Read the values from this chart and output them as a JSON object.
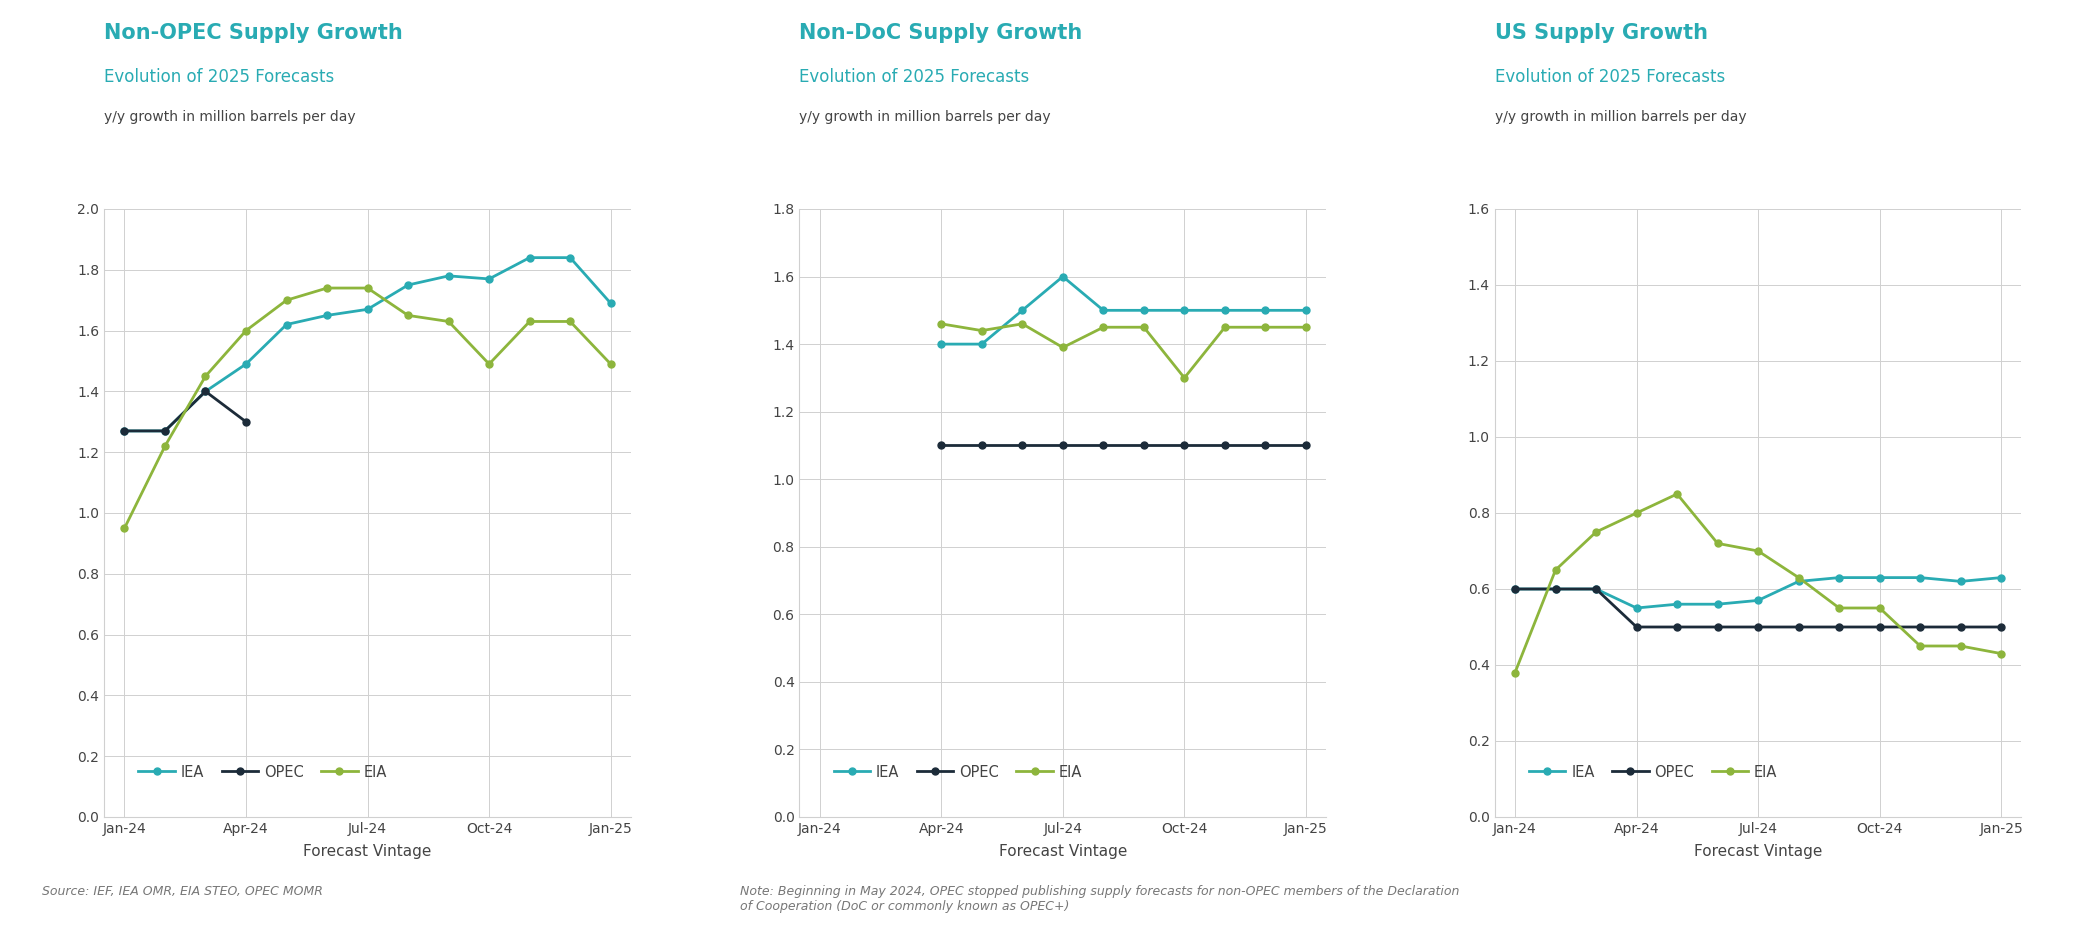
{
  "chart1": {
    "title": "Non-OPEC Supply Growth",
    "subtitle": "Evolution of 2025 Forecasts",
    "ylabel": "y/y growth in million barrels per day",
    "xlabel": "Forecast Vintage",
    "ylim": [
      0.0,
      2.0
    ],
    "yticks": [
      0.0,
      0.2,
      0.4,
      0.6,
      0.8,
      1.0,
      1.2,
      1.4,
      1.6,
      1.8,
      2.0
    ],
    "x_labels": [
      "Jan-24",
      "Apr-24",
      "Jul-24",
      "Oct-24",
      "Jan-25"
    ],
    "x_positions": [
      0,
      3,
      6,
      9,
      12
    ],
    "IEA": {
      "x": [
        0,
        1,
        2,
        3,
        4,
        5,
        6,
        7,
        8,
        9,
        10,
        11,
        12
      ],
      "y": [
        1.27,
        1.27,
        1.4,
        1.49,
        1.62,
        1.65,
        1.67,
        1.75,
        1.78,
        1.77,
        1.84,
        1.84,
        1.69
      ]
    },
    "OPEC": {
      "x": [
        0,
        1,
        2,
        3
      ],
      "y": [
        1.27,
        1.27,
        1.4,
        1.3
      ]
    },
    "EIA": {
      "x": [
        0,
        1,
        2,
        3,
        4,
        5,
        6,
        7,
        8,
        9,
        10,
        11,
        12
      ],
      "y": [
        0.95,
        1.22,
        1.45,
        1.6,
        1.7,
        1.74,
        1.74,
        1.65,
        1.63,
        1.49,
        1.63,
        1.63,
        1.49
      ]
    }
  },
  "chart2": {
    "title": "Non-DoC Supply Growth",
    "subtitle": "Evolution of 2025 Forecasts",
    "ylabel": "y/y growth in million barrels per day",
    "xlabel": "Forecast Vintage",
    "ylim": [
      0.0,
      1.8
    ],
    "yticks": [
      0.0,
      0.2,
      0.4,
      0.6,
      0.8,
      1.0,
      1.2,
      1.4,
      1.6,
      1.8
    ],
    "x_labels": [
      "Jan-24",
      "Apr-24",
      "Jul-24",
      "Oct-24",
      "Jan-25"
    ],
    "x_positions": [
      0,
      3,
      6,
      9,
      12
    ],
    "IEA": {
      "x": [
        3,
        4,
        5,
        6,
        7,
        8,
        9,
        10,
        11,
        12
      ],
      "y": [
        1.4,
        1.4,
        1.5,
        1.6,
        1.5,
        1.5,
        1.5,
        1.5,
        1.5,
        1.5
      ]
    },
    "OPEC": {
      "x": [
        3,
        4,
        5,
        6,
        7,
        8,
        9,
        10,
        11,
        12
      ],
      "y": [
        1.1,
        1.1,
        1.1,
        1.1,
        1.1,
        1.1,
        1.1,
        1.1,
        1.1,
        1.1
      ]
    },
    "EIA": {
      "x": [
        3,
        4,
        5,
        6,
        7,
        8,
        9,
        10,
        11,
        12
      ],
      "y": [
        1.46,
        1.44,
        1.46,
        1.39,
        1.45,
        1.45,
        1.3,
        1.45,
        1.45,
        1.45
      ]
    }
  },
  "chart3": {
    "title": "US Supply Growth",
    "subtitle": "Evolution of 2025 Forecasts",
    "ylabel": "y/y growth in million barrels per day",
    "xlabel": "Forecast Vintage",
    "ylim": [
      0.0,
      1.6
    ],
    "yticks": [
      0.0,
      0.2,
      0.4,
      0.6,
      0.8,
      1.0,
      1.2,
      1.4,
      1.6
    ],
    "x_labels": [
      "Jan-24",
      "Apr-24",
      "Jul-24",
      "Oct-24",
      "Jan-25"
    ],
    "x_positions": [
      0,
      3,
      6,
      9,
      12
    ],
    "IEA": {
      "x": [
        0,
        1,
        2,
        3,
        4,
        5,
        6,
        7,
        8,
        9,
        10,
        11,
        12
      ],
      "y": [
        0.6,
        0.6,
        0.6,
        0.55,
        0.56,
        0.56,
        0.57,
        0.62,
        0.63,
        0.63,
        0.63,
        0.62,
        0.63
      ]
    },
    "OPEC": {
      "x": [
        0,
        1,
        2,
        3,
        4,
        5,
        6,
        7,
        8,
        9,
        10,
        11,
        12
      ],
      "y": [
        0.6,
        0.6,
        0.6,
        0.5,
        0.5,
        0.5,
        0.5,
        0.5,
        0.5,
        0.5,
        0.5,
        0.5,
        0.5
      ]
    },
    "EIA": {
      "x": [
        0,
        1,
        2,
        3,
        4,
        5,
        6,
        7,
        8,
        9,
        10,
        11,
        12
      ],
      "y": [
        0.38,
        0.65,
        0.75,
        0.8,
        0.85,
        0.72,
        0.7,
        0.63,
        0.55,
        0.55,
        0.45,
        0.45,
        0.43
      ]
    }
  },
  "colors": {
    "IEA": "#29ABB3",
    "OPEC": "#1C2B39",
    "EIA": "#8DB53C"
  },
  "title_color": "#29ABB3",
  "subtitle_color": "#29ABB3",
  "axis_label_color": "#444444",
  "tick_color": "#444444",
  "source_text": "Source: IEF, IEA OMR, EIA STEO, OPEC MOMR",
  "note_text": "Note: Beginning in May 2024, OPEC stopped publishing supply forecasts for non-OPEC members of the Declaration\nof Cooperation (DoC or commonly known as OPEC+)",
  "background_color": "#FFFFFF",
  "grid_color": "#D0D0D0"
}
